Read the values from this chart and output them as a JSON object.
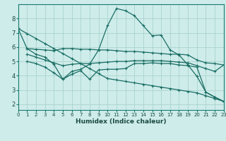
{
  "xlabel": "Humidex (Indice chaleur)",
  "bg_color": "#ceecea",
  "grid_color": "#aad4ce",
  "line_color": "#1a6e64",
  "x_ticks": [
    0,
    1,
    2,
    3,
    4,
    5,
    6,
    7,
    8,
    9,
    10,
    11,
    12,
    13,
    14,
    15,
    16,
    17,
    18,
    19,
    20,
    21,
    22,
    23
  ],
  "y_ticks": [
    2,
    3,
    4,
    5,
    6,
    7,
    8
  ],
  "ylim": [
    1.6,
    9.0
  ],
  "xlim": [
    0,
    23
  ],
  "series": [
    {
      "x": [
        0,
        1,
        2,
        3,
        4,
        5,
        6,
        7,
        8,
        9,
        10,
        11,
        12,
        13,
        14,
        15,
        16,
        17,
        18,
        19,
        20,
        21,
        22,
        23
      ],
      "y": [
        7.3,
        5.9,
        5.5,
        5.3,
        4.8,
        3.75,
        4.3,
        4.45,
        4.8,
        5.8,
        7.5,
        8.7,
        8.55,
        8.2,
        7.5,
        6.8,
        6.85,
        5.8,
        5.45,
        4.75,
        3.95,
        2.85,
        2.5,
        2.2
      ]
    },
    {
      "x": [
        1,
        2,
        3,
        4,
        5,
        6,
        7,
        8,
        9,
        10,
        11,
        12,
        13,
        14,
        15,
        16,
        17,
        18,
        19,
        20,
        21,
        22,
        23
      ],
      "y": [
        5.9,
        5.85,
        5.8,
        5.75,
        5.9,
        5.9,
        5.85,
        5.85,
        5.8,
        5.8,
        5.75,
        5.7,
        5.7,
        5.65,
        5.6,
        5.55,
        5.5,
        5.5,
        5.45,
        5.1,
        4.9,
        4.85,
        4.75
      ]
    },
    {
      "x": [
        1,
        2,
        3,
        4,
        5,
        6,
        7,
        8,
        9,
        10,
        11,
        12,
        13,
        14,
        15,
        16,
        17,
        18,
        19,
        20,
        21,
        22,
        23
      ],
      "y": [
        5.5,
        5.3,
        5.1,
        4.9,
        4.7,
        4.8,
        4.85,
        4.85,
        4.9,
        4.95,
        5.0,
        5.0,
        5.05,
        5.05,
        5.05,
        5.05,
        5.0,
        4.95,
        4.9,
        4.7,
        4.5,
        4.3,
        4.75
      ]
    },
    {
      "x": [
        1,
        2,
        3,
        4,
        5,
        6,
        7,
        8,
        9,
        10,
        11,
        12,
        13,
        14,
        15,
        16,
        17,
        18,
        19,
        20,
        21,
        22,
        23
      ],
      "y": [
        5.0,
        4.85,
        4.6,
        4.2,
        3.75,
        4.1,
        4.35,
        3.75,
        4.4,
        4.45,
        4.45,
        4.5,
        4.85,
        4.85,
        4.9,
        4.85,
        4.85,
        4.75,
        4.7,
        4.6,
        2.85,
        2.5,
        2.2
      ]
    },
    {
      "comment": "long diagonal from (0,7.3) to (23,2.2)",
      "x": [
        0,
        1,
        2,
        3,
        4,
        5,
        6,
        7,
        8,
        9,
        10,
        11,
        12,
        13,
        14,
        15,
        16,
        17,
        18,
        19,
        20,
        21,
        22,
        23
      ],
      "y": [
        7.3,
        6.95,
        6.6,
        6.25,
        5.9,
        5.55,
        5.2,
        4.85,
        4.5,
        4.15,
        3.8,
        3.7,
        3.6,
        3.5,
        3.4,
        3.3,
        3.2,
        3.1,
        3.0,
        2.9,
        2.8,
        2.6,
        2.4,
        2.2
      ]
    }
  ]
}
